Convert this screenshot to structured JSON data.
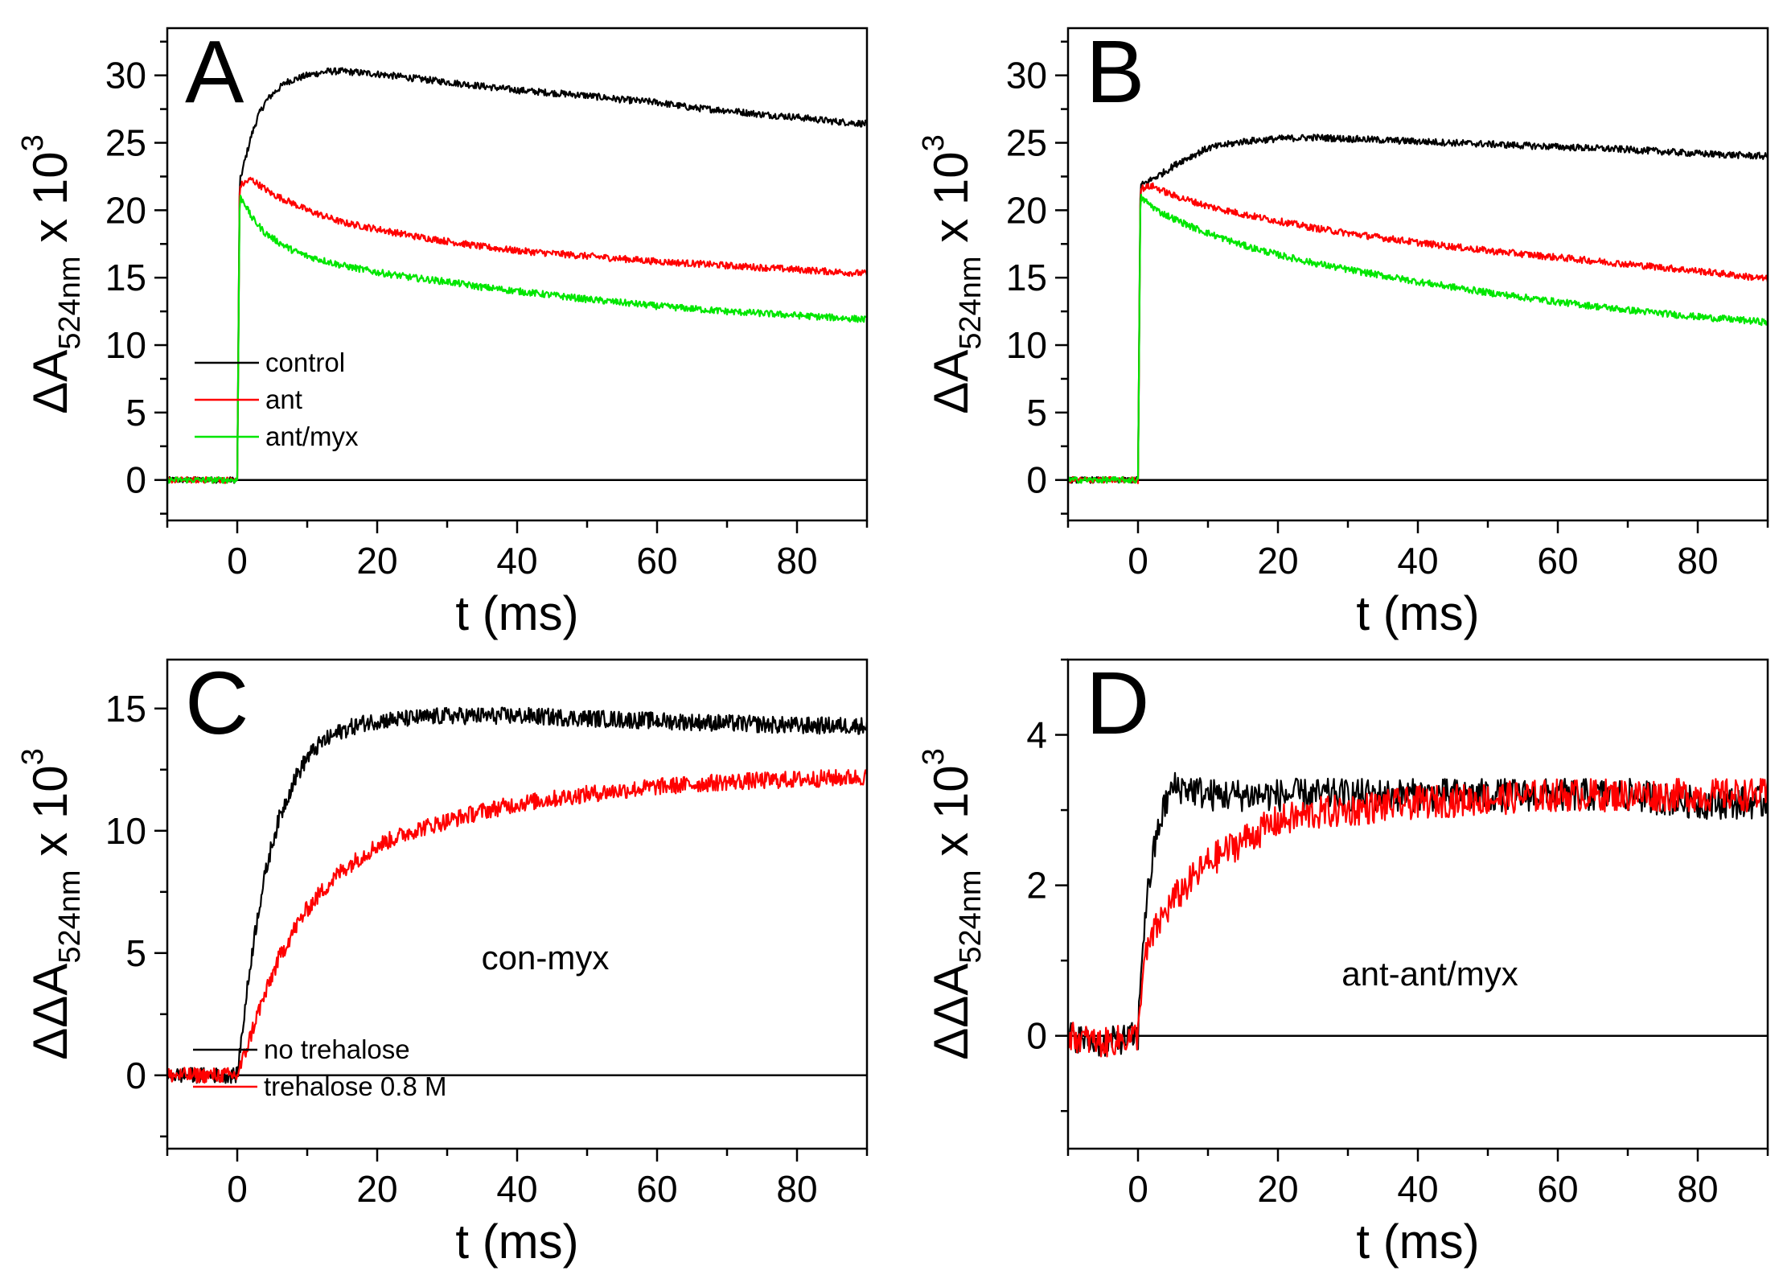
{
  "figure": {
    "description_labels": [
      "A",
      "B",
      "C",
      "D"
    ]
  },
  "colors": {
    "black": "#000000",
    "red": "#ff0000",
    "green": "#00e600"
  },
  "chart_data": [
    {
      "id": "A",
      "type": "line",
      "panel_label": "A",
      "xlabel": "t (ms)",
      "ylabel": {
        "main": "ΔA",
        "sub": "524nm",
        "suffix": " x 10",
        "exp": "3"
      },
      "xlim": [
        -10,
        90
      ],
      "ylim": [
        -3,
        33.5
      ],
      "xticks": [
        0,
        20,
        40,
        60,
        80
      ],
      "xtick_labels": [
        "0",
        "20",
        "40",
        "60",
        "80"
      ],
      "yticks": [
        0,
        5,
        10,
        15,
        20,
        25,
        30
      ],
      "ytick_labels": [
        "0",
        "5",
        "10",
        "15",
        "20",
        "25",
        "30"
      ],
      "zero_line": true,
      "legend": {
        "position": "lower-left",
        "entries": [
          "control",
          "ant",
          "ant/myx"
        ]
      },
      "series": [
        {
          "name": "control",
          "color": "#000000",
          "x": [
            -10,
            -5,
            0,
            0.3,
            1,
            2,
            3,
            4,
            5,
            7,
            10,
            13,
            15,
            20,
            25,
            30,
            35,
            40,
            45,
            50,
            55,
            60,
            65,
            70,
            75,
            80,
            85,
            90
          ],
          "values": [
            0,
            0,
            0,
            22,
            23.5,
            25.5,
            27,
            28,
            28.6,
            29.5,
            30,
            30.3,
            30.3,
            30.1,
            29.8,
            29.5,
            29.2,
            28.9,
            28.7,
            28.5,
            28.2,
            28,
            27.6,
            27.4,
            27.1,
            26.9,
            26.6,
            26.4
          ]
        },
        {
          "name": "ant",
          "color": "#ff0000",
          "x": [
            -10,
            -5,
            0,
            0.3,
            2,
            5,
            8,
            10,
            15,
            20,
            25,
            30,
            35,
            40,
            50,
            60,
            70,
            80,
            90
          ],
          "values": [
            0,
            0,
            0,
            21.8,
            22.3,
            21.2,
            20.5,
            20,
            19.1,
            18.6,
            18.1,
            17.7,
            17.3,
            17,
            16.6,
            16.2,
            15.9,
            15.6,
            15.3
          ]
        },
        {
          "name": "ant/myx",
          "color": "#00e600",
          "x": [
            -10,
            -5,
            0,
            0.3,
            1,
            2,
            4,
            6,
            8,
            10,
            15,
            20,
            25,
            30,
            35,
            40,
            50,
            60,
            70,
            80,
            90
          ],
          "values": [
            0,
            0,
            0,
            21,
            20.6,
            19.5,
            18.3,
            17.6,
            17,
            16.6,
            15.9,
            15.4,
            15,
            14.7,
            14.3,
            14,
            13.4,
            12.9,
            12.5,
            12.2,
            11.9
          ]
        }
      ]
    },
    {
      "id": "B",
      "type": "line",
      "panel_label": "B",
      "xlabel": "t (ms)",
      "ylabel": {
        "main": "ΔA",
        "sub": "524nm",
        "suffix": " x 10",
        "exp": "3"
      },
      "xlim": [
        -10,
        90
      ],
      "ylim": [
        -3,
        33.5
      ],
      "xticks": [
        0,
        20,
        40,
        60,
        80
      ],
      "xtick_labels": [
        "0",
        "20",
        "40",
        "60",
        "80"
      ],
      "yticks": [
        0,
        5,
        10,
        15,
        20,
        25,
        30
      ],
      "ytick_labels": [
        "0",
        "5",
        "10",
        "15",
        "20",
        "25",
        "30"
      ],
      "zero_line": true,
      "series": [
        {
          "name": "control",
          "color": "#000000",
          "x": [
            -10,
            -5,
            0,
            0.3,
            2,
            4,
            6,
            8,
            10,
            15,
            20,
            25,
            30,
            35,
            40,
            50,
            60,
            70,
            80,
            90
          ],
          "values": [
            0,
            0,
            0,
            21.8,
            22.3,
            22.9,
            23.6,
            24.1,
            24.6,
            25.1,
            25.3,
            25.4,
            25.3,
            25.2,
            25.1,
            24.9,
            24.7,
            24.5,
            24.2,
            24
          ]
        },
        {
          "name": "ant",
          "color": "#ff0000",
          "x": [
            -10,
            -5,
            0,
            0.3,
            2,
            5,
            10,
            15,
            20,
            25,
            30,
            40,
            50,
            60,
            70,
            80,
            90
          ],
          "values": [
            0,
            0,
            0,
            21.6,
            21.8,
            21.1,
            20.3,
            19.7,
            19.2,
            18.7,
            18.3,
            17.6,
            17,
            16.5,
            16,
            15.5,
            14.9
          ]
        },
        {
          "name": "ant/myx",
          "color": "#00e600",
          "x": [
            -10,
            -5,
            0,
            0.3,
            1,
            3,
            5,
            8,
            10,
            15,
            20,
            25,
            30,
            40,
            50,
            60,
            70,
            80,
            90
          ],
          "values": [
            0,
            0,
            0,
            21,
            20.7,
            19.9,
            19.4,
            18.7,
            18.3,
            17.4,
            16.7,
            16.1,
            15.6,
            14.7,
            13.9,
            13.2,
            12.6,
            12.1,
            11.7
          ]
        }
      ]
    },
    {
      "id": "C",
      "type": "line",
      "panel_label": "C",
      "xlabel": "t (ms)",
      "ylabel": {
        "main": "ΔΔA",
        "sub": "524nm",
        "suffix": " x 10",
        "exp": "3"
      },
      "xlim": [
        -10,
        90
      ],
      "ylim": [
        -3,
        17
      ],
      "xticks": [
        0,
        20,
        40,
        60,
        80
      ],
      "xtick_labels": [
        "0",
        "20",
        "40",
        "60",
        "80"
      ],
      "yticks": [
        0,
        5,
        10,
        15
      ],
      "ytick_labels": [
        "0",
        "5",
        "10",
        "15"
      ],
      "zero_line": true,
      "annotation": "con-myx",
      "legend": {
        "position": "lower-left",
        "entries": [
          "no trehalose",
          "trehalose 0.8 M"
        ]
      },
      "series": [
        {
          "name": "no trehalose",
          "color": "#000000",
          "x": [
            -10,
            -5,
            0,
            1,
            2,
            3,
            4,
            5,
            6,
            8,
            10,
            12,
            15,
            18,
            20,
            25,
            30,
            40,
            50,
            60,
            70,
            80,
            90
          ],
          "values": [
            0,
            0,
            0,
            2.5,
            4.8,
            6.7,
            8.2,
            9.5,
            10.5,
            12,
            13,
            13.6,
            14.1,
            14.4,
            14.5,
            14.6,
            14.7,
            14.7,
            14.6,
            14.5,
            14.4,
            14.3,
            14.3
          ]
        },
        {
          "name": "trehalose 0.8 M",
          "color": "#ff0000",
          "x": [
            -10,
            -5,
            0,
            1,
            2,
            3,
            4,
            5,
            6,
            8,
            10,
            12,
            15,
            20,
            25,
            30,
            35,
            40,
            50,
            60,
            70,
            80,
            90
          ],
          "values": [
            0,
            0,
            0,
            0.8,
            1.7,
            2.6,
            3.3,
            4.1,
            4.8,
            5.9,
            6.8,
            7.5,
            8.4,
            9.4,
            10,
            10.4,
            10.8,
            11.1,
            11.5,
            11.8,
            12,
            12.1,
            12.2
          ]
        }
      ]
    },
    {
      "id": "D",
      "type": "line",
      "panel_label": "D",
      "xlabel": "t (ms)",
      "ylabel": {
        "main": "ΔΔA",
        "sub": "524nm",
        "suffix": " x 10",
        "exp": "3"
      },
      "xlim": [
        -10,
        90
      ],
      "ylim": [
        -1.5,
        5
      ],
      "xticks": [
        0,
        20,
        40,
        60,
        80
      ],
      "xtick_labels": [
        "0",
        "20",
        "40",
        "60",
        "80"
      ],
      "yticks": [
        0,
        2,
        4
      ],
      "ytick_labels": [
        "0",
        "2",
        "4"
      ],
      "zero_line": true,
      "annotation": "ant-ant/myx",
      "series": [
        {
          "name": "no trehalose",
          "color": "#000000",
          "x": [
            -10,
            -5,
            0,
            0.5,
            1,
            2,
            3,
            4,
            5,
            7,
            10,
            15,
            20,
            30,
            40,
            50,
            60,
            70,
            80,
            90
          ],
          "values": [
            0,
            -0.1,
            0,
            1,
            1.6,
            2.3,
            2.8,
            3.1,
            3.3,
            3.3,
            3.2,
            3.2,
            3.2,
            3.2,
            3.2,
            3.2,
            3.2,
            3.2,
            3.1,
            3.1
          ]
        },
        {
          "name": "trehalose 0.8 M",
          "color": "#ff0000",
          "x": [
            -10,
            -5,
            0,
            0.5,
            1,
            2,
            3,
            5,
            7,
            10,
            15,
            20,
            25,
            30,
            40,
            50,
            60,
            70,
            80,
            90
          ],
          "values": [
            0,
            -0.1,
            0,
            0.7,
            1,
            1.3,
            1.5,
            1.8,
            2,
            2.3,
            2.6,
            2.85,
            2.95,
            3,
            3.1,
            3.15,
            3.2,
            3.2,
            3.2,
            3.2
          ]
        }
      ]
    }
  ]
}
